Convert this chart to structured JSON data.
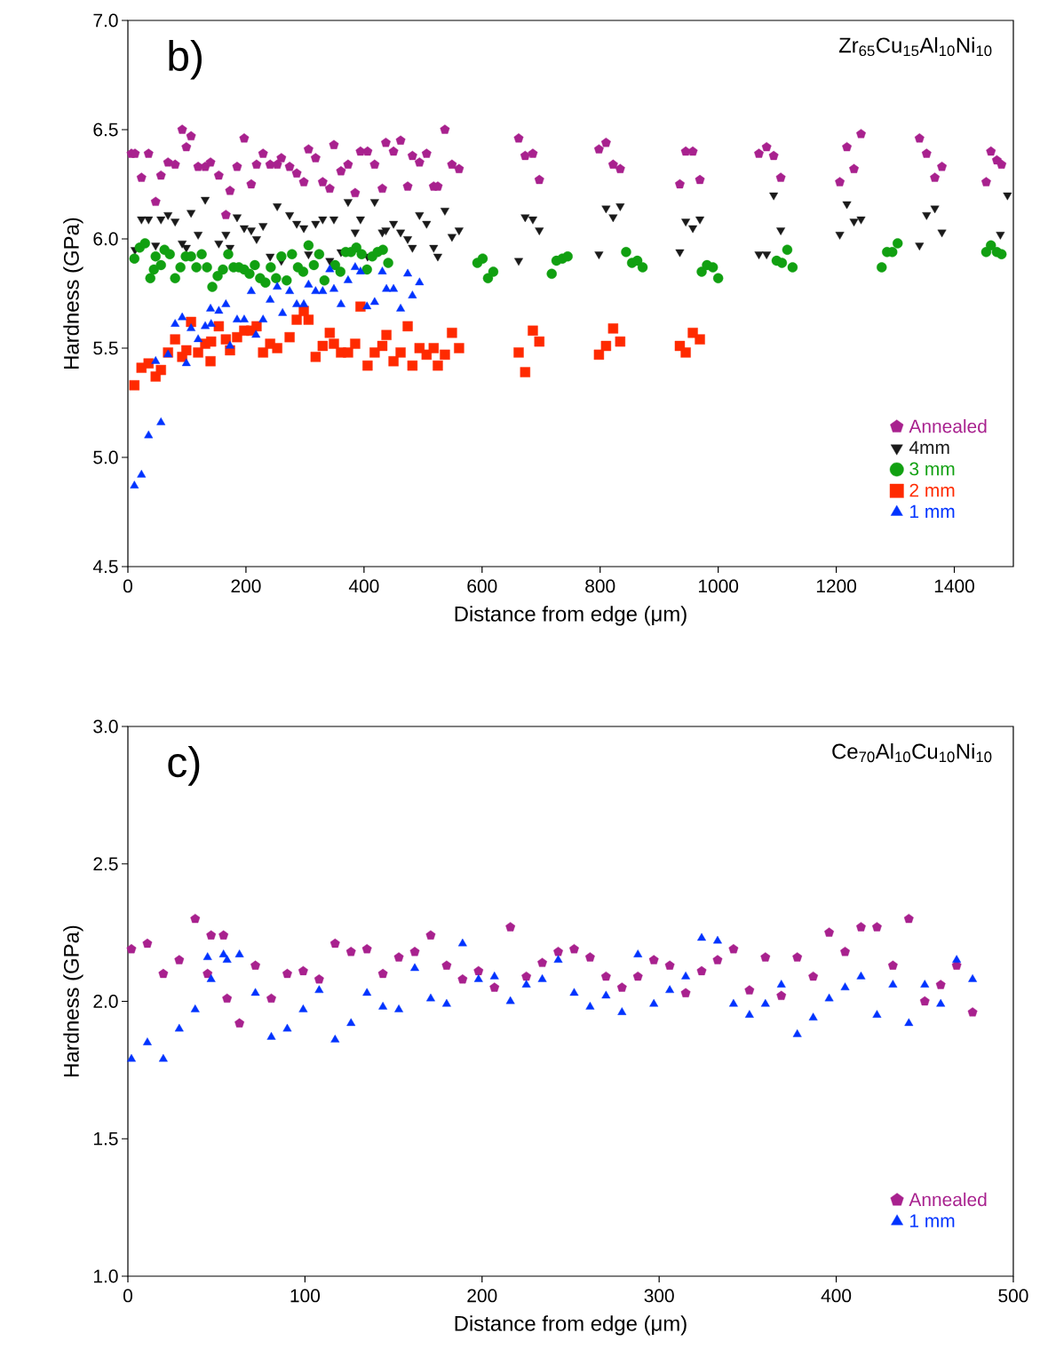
{
  "chart_data": [
    {
      "type": "scatter",
      "xlabel": "Distance from edge (μm)",
      "ylabel": "Hardness (GPa)",
      "annotations": [
        "b)",
        "Zr$_{65}$Cu$_{15}$Al$_{10}$Ni$_{10}$"
      ],
      "xlim": [
        0,
        1500
      ],
      "ylim": [
        4.5,
        7.0
      ],
      "xticks": [
        0,
        200,
        400,
        600,
        800,
        1000,
        1200,
        1400
      ],
      "yticks": [
        {
          "value": 4.5,
          "label": "4.5"
        },
        {
          "value": 5,
          "label": "5.0"
        },
        {
          "value": 5.5,
          "label": "5.5"
        },
        {
          "value": 6,
          "label": "6.0"
        },
        {
          "value": 6.5,
          "label": "6.5"
        },
        {
          "value": 7,
          "label": "7.0"
        }
      ],
      "legend": "bottom right",
      "grid": false,
      "series": [
        {
          "name": "Annealed",
          "color": "#a8218e",
          "x": [
            6,
            12,
            23,
            35,
            47,
            56,
            68,
            80,
            92,
            99,
            107,
            119,
            131,
            140,
            154,
            166,
            173,
            185,
            197,
            209,
            218,
            229,
            241,
            253,
            260,
            274,
            286,
            298,
            306,
            318,
            330,
            342,
            349,
            361,
            373,
            385,
            394,
            406,
            418,
            431,
            437,
            450,
            462,
            474,
            482,
            494,
            506,
            518,
            525,
            537,
            549,
            561,
            662,
            673,
            686,
            697,
            798,
            810,
            822,
            834,
            935,
            945,
            957,
            969,
            1069,
            1082,
            1094,
            1106,
            1206,
            1218,
            1230,
            1242,
            1341,
            1353,
            1367,
            1379,
            1454,
            1462,
            1472,
            1480
          ],
          "values": [
            6.39,
            6.39,
            6.28,
            6.39,
            6.17,
            6.29,
            6.35,
            6.34,
            6.5,
            6.42,
            6.47,
            6.33,
            6.33,
            6.35,
            6.29,
            6.11,
            6.22,
            6.33,
            6.46,
            6.25,
            6.34,
            6.39,
            6.34,
            6.34,
            6.37,
            6.33,
            6.3,
            6.26,
            6.41,
            6.37,
            6.26,
            6.23,
            6.43,
            6.31,
            6.34,
            6.21,
            6.4,
            6.4,
            6.34,
            6.23,
            6.44,
            6.4,
            6.45,
            6.24,
            6.38,
            6.35,
            6.39,
            6.24,
            6.24,
            6.5,
            6.34,
            6.32,
            6.46,
            6.38,
            6.39,
            6.27,
            6.41,
            6.44,
            6.34,
            6.32,
            6.25,
            6.4,
            6.4,
            6.27,
            6.39,
            6.42,
            6.38,
            6.28,
            6.26,
            6.42,
            6.32,
            6.48,
            6.46,
            6.39,
            6.28,
            6.33,
            6.26,
            6.4,
            6.36,
            6.34
          ]
        },
        {
          "name": "4mm",
          "color": "#1a1a1a",
          "marker": "triangle-down",
          "x": [
            12,
            23,
            35,
            47,
            56,
            68,
            80,
            92,
            99,
            107,
            119,
            131,
            154,
            166,
            173,
            185,
            197,
            209,
            218,
            229,
            241,
            253,
            260,
            274,
            286,
            298,
            306,
            318,
            330,
            342,
            349,
            361,
            373,
            385,
            394,
            406,
            418,
            431,
            437,
            450,
            462,
            474,
            482,
            494,
            506,
            518,
            525,
            537,
            549,
            561,
            662,
            673,
            686,
            697,
            798,
            810,
            822,
            834,
            935,
            945,
            957,
            969,
            1069,
            1082,
            1094,
            1106,
            1206,
            1218,
            1230,
            1242,
            1341,
            1353,
            1367,
            1379,
            1478,
            1490
          ],
          "values": [
            5.95,
            6.09,
            6.09,
            5.97,
            6.09,
            6.11,
            6.08,
            5.98,
            5.96,
            6.12,
            6.02,
            6.18,
            5.98,
            6.02,
            5.96,
            6.1,
            6.05,
            6.04,
            6.0,
            6.06,
            5.92,
            6.15,
            5.9,
            6.11,
            6.07,
            6.05,
            5.93,
            6.07,
            6.09,
            5.9,
            6.09,
            5.94,
            6.17,
            6.03,
            6.09,
            5.92,
            6.17,
            6.03,
            6.04,
            6.07,
            6.03,
            6.0,
            5.96,
            6.11,
            6.07,
            5.96,
            5.92,
            6.13,
            6.01,
            6.04,
            5.9,
            6.1,
            6.09,
            6.04,
            5.93,
            6.14,
            6.1,
            6.15,
            5.94,
            6.08,
            6.05,
            6.09,
            5.93,
            5.93,
            6.2,
            6.04,
            6.02,
            6.16,
            6.08,
            6.09,
            5.97,
            6.11,
            6.14,
            6.03,
            6.02,
            6.2
          ]
        },
        {
          "name": "3 mm",
          "color": "#11a011",
          "marker": "circle",
          "x": [
            11,
            20,
            29,
            38,
            44,
            47,
            56,
            62,
            71,
            80,
            89,
            98,
            107,
            116,
            125,
            134,
            143,
            152,
            161,
            170,
            179,
            188,
            197,
            206,
            215,
            224,
            233,
            242,
            251,
            260,
            269,
            278,
            288,
            297,
            306,
            315,
            324,
            333,
            351,
            360,
            369,
            378,
            387,
            396,
            405,
            414,
            423,
            432,
            441,
            592,
            601,
            610,
            619,
            718,
            726,
            736,
            745,
            844,
            854,
            863,
            872,
            972,
            981,
            991,
            1000,
            1099,
            1108,
            1117,
            1126,
            1277,
            1286,
            1295,
            1304,
            1454,
            1462,
            1472,
            1480
          ],
          "values": [
            5.91,
            5.96,
            5.98,
            5.82,
            5.86,
            5.92,
            5.88,
            5.95,
            5.93,
            5.82,
            5.87,
            5.92,
            5.92,
            5.87,
            5.93,
            5.87,
            5.78,
            5.83,
            5.86,
            5.93,
            5.87,
            5.87,
            5.86,
            5.84,
            5.88,
            5.82,
            5.8,
            5.87,
            5.82,
            5.92,
            5.81,
            5.93,
            5.87,
            5.85,
            5.97,
            5.88,
            5.93,
            5.81,
            5.88,
            5.85,
            5.94,
            5.94,
            5.96,
            5.93,
            5.86,
            5.92,
            5.94,
            5.95,
            5.89,
            5.89,
            5.91,
            5.82,
            5.85,
            5.84,
            5.9,
            5.91,
            5.92,
            5.94,
            5.89,
            5.9,
            5.87,
            5.85,
            5.88,
            5.87,
            5.82,
            5.9,
            5.89,
            5.95,
            5.87,
            5.87,
            5.94,
            5.94,
            5.98,
            5.94,
            5.97,
            5.94,
            5.93
          ]
        },
        {
          "name": "2 mm",
          "color": "#ff2a00",
          "marker": "square",
          "x": [
            11,
            23,
            35,
            47,
            56,
            68,
            80,
            92,
            99,
            107,
            119,
            131,
            140,
            141,
            154,
            166,
            173,
            185,
            197,
            209,
            218,
            229,
            241,
            253,
            274,
            286,
            298,
            306,
            318,
            330,
            342,
            349,
            361,
            373,
            385,
            394,
            406,
            418,
            431,
            438,
            450,
            462,
            474,
            482,
            494,
            506,
            518,
            525,
            537,
            549,
            561,
            662,
            673,
            686,
            697,
            798,
            810,
            822,
            834,
            935,
            945,
            957,
            969
          ],
          "values": [
            5.33,
            5.41,
            5.43,
            5.37,
            5.4,
            5.48,
            5.54,
            5.46,
            5.49,
            5.62,
            5.48,
            5.52,
            5.44,
            5.53,
            5.6,
            5.54,
            5.49,
            5.55,
            5.58,
            5.58,
            5.6,
            5.48,
            5.52,
            5.5,
            5.55,
            5.63,
            5.67,
            5.63,
            5.46,
            5.51,
            5.57,
            5.52,
            5.48,
            5.48,
            5.52,
            5.69,
            5.42,
            5.48,
            5.51,
            5.56,
            5.44,
            5.48,
            5.6,
            5.42,
            5.5,
            5.47,
            5.5,
            5.42,
            5.47,
            5.57,
            5.5,
            5.48,
            5.39,
            5.58,
            5.53,
            5.47,
            5.51,
            5.59,
            5.53,
            5.51,
            5.48,
            5.57,
            5.54
          ]
        },
        {
          "name": "1 mm",
          "color": "#0033ff",
          "marker": "triangle",
          "x": [
            11,
            23,
            35,
            47,
            56,
            68,
            80,
            92,
            99,
            107,
            119,
            131,
            140,
            141,
            154,
            166,
            173,
            185,
            197,
            209,
            217,
            229,
            241,
            253,
            262,
            274,
            286,
            298,
            306,
            318,
            330,
            342,
            349,
            361,
            373,
            385,
            394,
            405,
            418,
            431,
            438,
            450,
            462,
            474,
            482,
            494
          ],
          "values": [
            4.87,
            4.92,
            5.1,
            5.44,
            5.16,
            5.47,
            5.61,
            5.64,
            5.43,
            5.59,
            5.54,
            5.6,
            5.68,
            5.61,
            5.67,
            5.7,
            5.51,
            5.63,
            5.63,
            5.76,
            5.56,
            5.63,
            5.72,
            5.78,
            5.66,
            5.76,
            5.7,
            5.7,
            5.79,
            5.76,
            5.76,
            5.86,
            5.77,
            5.7,
            5.81,
            5.87,
            5.85,
            5.69,
            5.71,
            5.85,
            5.77,
            5.77,
            5.68,
            5.84,
            5.74,
            5.8
          ]
        }
      ]
    },
    {
      "type": "scatter",
      "xlabel": "Distance from edge (μm)",
      "ylabel": "Hardness (GPa)",
      "annotations": [
        "c)",
        "Ce$_{70}$Al$_{10}$Cu$_{10}$Ni$_{10}$"
      ],
      "xlim": [
        0,
        500
      ],
      "ylim": [
        1.0,
        3.0
      ],
      "xticks": [
        0,
        100,
        200,
        300,
        400,
        500
      ],
      "yticks": [
        {
          "value": 1,
          "label": "1.0"
        },
        {
          "value": 1.5,
          "label": "1.5"
        },
        {
          "value": 2,
          "label": "2.0"
        },
        {
          "value": 2.5,
          "label": "2.5"
        },
        {
          "value": 3,
          "label": "3.0"
        }
      ],
      "legend": "bottom right",
      "grid": false,
      "series": [
        {
          "name": "Annealed",
          "color": "#a8218e",
          "x": [
            2,
            11,
            20,
            29,
            38,
            45,
            47,
            54,
            56,
            63,
            72,
            81,
            90,
            99,
            108,
            117,
            126,
            135,
            144,
            153,
            162,
            171,
            180,
            189,
            198,
            207,
            216,
            225,
            234,
            243,
            252,
            261,
            270,
            279,
            288,
            297,
            306,
            315,
            324,
            333,
            342,
            351,
            360,
            369,
            378,
            387,
            396,
            405,
            414,
            423,
            432,
            441,
            450,
            459,
            468,
            477
          ],
          "values": [
            2.19,
            2.21,
            2.1,
            2.15,
            2.3,
            2.1,
            2.24,
            2.24,
            2.01,
            1.92,
            2.13,
            2.01,
            2.1,
            2.11,
            2.08,
            2.21,
            2.18,
            2.19,
            2.1,
            2.16,
            2.18,
            2.24,
            2.13,
            2.08,
            2.11,
            2.05,
            2.27,
            2.09,
            2.14,
            2.18,
            2.19,
            2.16,
            2.09,
            2.05,
            2.09,
            2.15,
            2.13,
            2.03,
            2.11,
            2.15,
            2.19,
            2.04,
            2.16,
            2.02,
            2.16,
            2.09,
            2.25,
            2.18,
            2.27,
            2.27,
            2.13,
            2.3,
            2.0,
            2.06,
            2.13,
            1.96
          ]
        },
        {
          "name": "1 mm",
          "color": "#0033ff",
          "marker": "triangle",
          "x": [
            2,
            11,
            20,
            29,
            38,
            45,
            47,
            54,
            56,
            63,
            72,
            81,
            90,
            99,
            108,
            117,
            126,
            135,
            144,
            153,
            162,
            171,
            180,
            189,
            198,
            207,
            216,
            225,
            234,
            243,
            252,
            261,
            270,
            279,
            288,
            297,
            306,
            315,
            324,
            333,
            342,
            351,
            360,
            369,
            378,
            387,
            396,
            405,
            414,
            423,
            432,
            441,
            450,
            459,
            468,
            477
          ],
          "values": [
            1.79,
            1.85,
            1.79,
            1.9,
            1.97,
            2.16,
            2.08,
            2.17,
            2.15,
            2.17,
            2.03,
            1.87,
            1.9,
            1.97,
            2.04,
            1.86,
            1.92,
            2.03,
            1.98,
            1.97,
            2.12,
            2.01,
            1.99,
            2.21,
            2.08,
            2.09,
            2.0,
            2.06,
            2.08,
            2.15,
            2.03,
            1.98,
            2.02,
            1.96,
            2.17,
            1.99,
            2.04,
            2.09,
            2.23,
            2.22,
            1.99,
            1.95,
            1.99,
            2.06,
            1.88,
            1.94,
            2.01,
            2.05,
            2.09,
            1.95,
            2.06,
            1.92,
            2.06,
            1.99,
            2.15,
            2.08
          ]
        }
      ]
    }
  ]
}
